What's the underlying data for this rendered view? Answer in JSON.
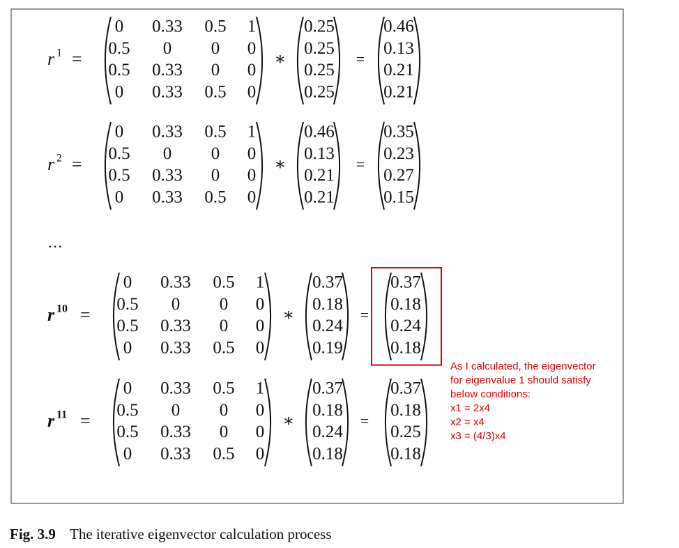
{
  "symbols": {
    "equals": "=",
    "times": "∗",
    "ellipsis": "…"
  },
  "equations": [
    {
      "variable": "r",
      "power": "1",
      "bold": false,
      "matrix": [
        [
          "0",
          "0.33",
          "0.5",
          "1"
        ],
        [
          "0.5",
          "0",
          "0",
          "0"
        ],
        [
          "0.5",
          "0.33",
          "0",
          "0"
        ],
        [
          "0",
          "0.33",
          "0.5",
          "0"
        ]
      ],
      "vector": [
        "0.25",
        "0.25",
        "0.25",
        "0.25"
      ],
      "result": [
        "0.46",
        "0.13",
        "0.21",
        "0.21"
      ]
    },
    {
      "variable": "r",
      "power": "2",
      "bold": false,
      "matrix": [
        [
          "0",
          "0.33",
          "0.5",
          "1"
        ],
        [
          "0.5",
          "0",
          "0",
          "0"
        ],
        [
          "0.5",
          "0.33",
          "0",
          "0"
        ],
        [
          "0",
          "0.33",
          "0.5",
          "0"
        ]
      ],
      "vector": [
        "0.46",
        "0.13",
        "0.21",
        "0.21"
      ],
      "result": [
        "0.35",
        "0.23",
        "0.27",
        "0.15"
      ]
    },
    {
      "variable": "r",
      "power": "10",
      "bold": true,
      "highlighted": true,
      "matrix": [
        [
          "0",
          "0.33",
          "0.5",
          "1"
        ],
        [
          "0.5",
          "0",
          "0",
          "0"
        ],
        [
          "0.5",
          "0.33",
          "0",
          "0"
        ],
        [
          "0",
          "0.33",
          "0.5",
          "0"
        ]
      ],
      "vector": [
        "0.37",
        "0.18",
        "0.24",
        "0.19"
      ],
      "result": [
        "0.37",
        "0.18",
        "0.24",
        "0.18"
      ]
    },
    {
      "variable": "r",
      "power": "11",
      "bold": true,
      "matrix": [
        [
          "0",
          "0.33",
          "0.5",
          "1"
        ],
        [
          "0.5",
          "0",
          "0",
          "0"
        ],
        [
          "0.5",
          "0.33",
          "0",
          "0"
        ],
        [
          "0",
          "0.33",
          "0.5",
          "0"
        ]
      ],
      "vector": [
        "0.37",
        "0.18",
        "0.24",
        "0.18"
      ],
      "result": [
        "0.37",
        "0.18",
        "0.25",
        "0.18"
      ]
    }
  ],
  "annotation": [
    "As I calculated, the eigenvector",
    "for eigenvalue 1 should satisfy",
    "below conditions:",
    "x1 = 2x4",
    "x2 = x4",
    "x3 = (4/3)x4"
  ],
  "caption": {
    "label": "Fig. 3.9",
    "text": "The iterative eigenvector calculation process"
  }
}
